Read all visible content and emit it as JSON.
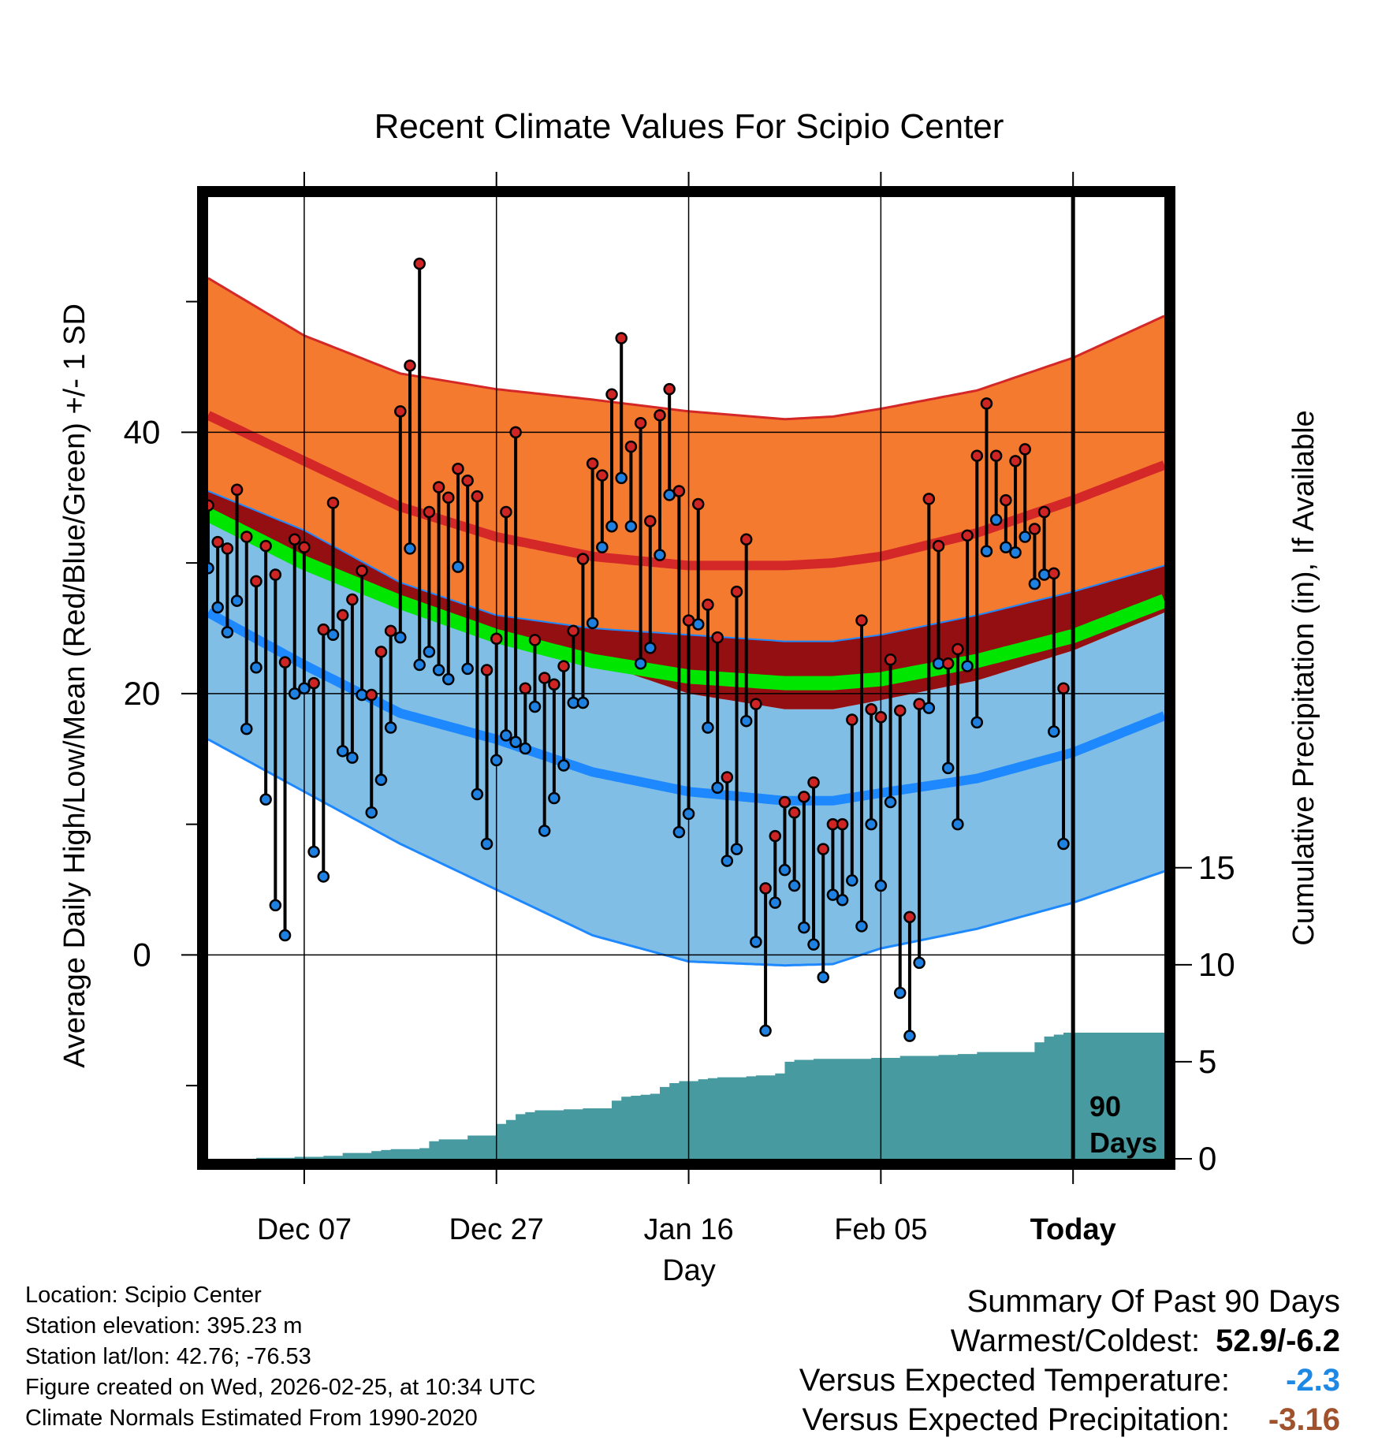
{
  "chart_data": {
    "type": "line",
    "title": "Recent Climate Values For Scipio Center",
    "xlabel": "Day",
    "ylabel_left": "Average Daily High/Low/Mean (Red/Blue/Green) +/- 1 SD",
    "ylabel_right": "Cumulative Precipitation (in), If Available",
    "x_tick_labels": [
      "Dec 07",
      "Dec 27",
      "Jan 16",
      "Feb 05",
      "Today"
    ],
    "x_tick_days": [
      10,
      30,
      50,
      70,
      90
    ],
    "xlim": [
      0,
      99.5
    ],
    "ylim_temp": [
      -15.6,
      58
    ],
    "y_ticks_temp": [
      "40",
      "20",
      "0"
    ],
    "y_tick_values_temp": [
      40,
      20,
      0
    ],
    "y_ticks_precip": [
      "15",
      "10",
      "5",
      "0"
    ],
    "y_tick_values_precip": [
      15,
      10,
      5,
      0
    ],
    "precip_scale": {
      "zero_at_temp": -15.6,
      "temp_per_inch": 1.485
    },
    "window_label": "90",
    "window_label2": "Days",
    "normal_high": {
      "x": [
        0,
        10,
        20,
        30,
        40,
        50,
        60,
        65,
        70,
        80,
        90,
        99.5
      ],
      "mean": [
        41.3,
        37.8,
        34.3,
        32.0,
        30.5,
        29.8,
        29.8,
        30.0,
        30.5,
        32.3,
        34.8,
        37.5
      ],
      "upper": [
        51.8,
        47.4,
        44.5,
        43.3,
        42.5,
        41.6,
        41.0,
        41.2,
        41.8,
        43.2,
        45.7,
        48.9
      ],
      "lower": [
        35.5,
        32.5,
        28.5,
        26.0,
        25.0,
        24.5,
        24.0,
        24.0,
        24.5,
        26.0,
        27.8,
        29.8
      ]
    },
    "normal_mean": {
      "x": [
        0,
        10,
        20,
        30,
        40,
        50,
        60,
        65,
        70,
        80,
        90,
        99.5
      ],
      "values": [
        33.7,
        30.0,
        27.0,
        24.4,
        22.5,
        21.3,
        20.8,
        20.8,
        21.1,
        22.5,
        24.4,
        27.1
      ]
    },
    "normal_low": {
      "x": [
        0,
        10,
        20,
        30,
        40,
        50,
        60,
        65,
        70,
        80,
        90,
        99.5
      ],
      "mean": [
        26.2,
        22.2,
        18.5,
        16.5,
        14.0,
        12.5,
        11.8,
        11.8,
        12.4,
        13.5,
        15.5,
        18.3
      ],
      "upper": [
        33.5,
        30.0,
        26.5,
        24.0,
        22.5,
        20.0,
        18.8,
        18.8,
        19.5,
        21.0,
        23.3,
        26.2
      ],
      "lower": [
        16.5,
        12.5,
        8.5,
        5.0,
        1.5,
        -0.5,
        -0.8,
        -0.7,
        0.5,
        2.0,
        4.0,
        6.4
      ]
    },
    "daily_high": [
      34.4,
      31.6,
      31.1,
      35.6,
      32.0,
      28.6,
      31.3,
      29.1,
      22.4,
      31.8,
      31.2,
      20.8,
      24.9,
      34.6,
      26.0,
      27.2,
      29.4,
      19.9,
      23.2,
      24.8,
      41.6,
      45.1,
      52.9,
      33.9,
      35.8,
      35.0,
      37.2,
      36.3,
      35.1,
      21.8,
      24.2,
      33.9,
      40.0,
      20.4,
      24.1,
      21.2,
      20.7,
      22.1,
      24.8,
      30.3,
      37.6,
      36.7,
      42.9,
      47.2,
      38.9,
      40.7,
      33.2,
      41.3,
      43.3,
      35.5,
      25.6,
      34.5,
      26.8,
      24.3,
      13.6,
      27.8,
      31.8,
      19.2,
      5.1,
      9.1,
      11.7,
      10.9,
      12.1,
      13.2,
      8.1,
      10.0,
      10.0,
      18.0,
      25.6,
      18.8,
      18.2,
      22.6,
      18.7,
      2.9,
      19.2,
      34.9,
      31.3,
      22.3,
      23.4,
      32.1,
      38.2,
      42.2,
      38.2,
      34.8,
      37.8,
      38.7,
      32.6,
      33.9,
      29.2,
      20.4
    ],
    "daily_low": [
      29.6,
      26.6,
      24.7,
      27.1,
      17.3,
      22.0,
      11.9,
      3.8,
      1.5,
      20.0,
      20.4,
      7.9,
      6.0,
      24.5,
      15.6,
      15.1,
      19.9,
      10.9,
      13.4,
      17.4,
      24.3,
      31.1,
      22.2,
      23.2,
      21.8,
      21.1,
      29.7,
      21.9,
      12.3,
      8.5,
      14.9,
      16.8,
      16.3,
      15.8,
      19.0,
      9.5,
      12.0,
      14.5,
      19.3,
      19.3,
      25.4,
      31.2,
      32.8,
      36.5,
      32.8,
      22.3,
      23.5,
      30.6,
      35.2,
      9.4,
      10.8,
      25.3,
      17.4,
      12.8,
      7.2,
      8.1,
      17.9,
      1.0,
      -5.8,
      4.0,
      6.5,
      5.3,
      2.1,
      0.8,
      -1.7,
      4.6,
      4.2,
      5.7,
      2.2,
      10.0,
      5.3,
      11.7,
      -2.9,
      -6.2,
      -0.6,
      18.9,
      22.3,
      14.3,
      10.0,
      22.1,
      17.8,
      30.9,
      33.3,
      31.2,
      30.8,
      32.0,
      28.4,
      29.1,
      17.1,
      8.5
    ],
    "cumulative_precip": [
      0.0,
      0.0,
      0.0,
      0.0,
      0.0,
      0.05,
      0.05,
      0.05,
      0.05,
      0.1,
      0.1,
      0.1,
      0.15,
      0.15,
      0.3,
      0.3,
      0.3,
      0.4,
      0.45,
      0.5,
      0.5,
      0.5,
      0.55,
      0.9,
      1.0,
      1.0,
      1.0,
      1.2,
      1.2,
      1.2,
      1.8,
      2.0,
      2.3,
      2.4,
      2.5,
      2.5,
      2.5,
      2.55,
      2.55,
      2.6,
      2.6,
      2.6,
      3.0,
      3.2,
      3.25,
      3.3,
      3.35,
      3.7,
      3.9,
      4.0,
      4.0,
      4.1,
      4.15,
      4.2,
      4.2,
      4.2,
      4.25,
      4.3,
      4.3,
      4.4,
      5.0,
      5.1,
      5.1,
      5.15,
      5.15,
      5.15,
      5.15,
      5.15,
      5.15,
      5.2,
      5.2,
      5.2,
      5.3,
      5.3,
      5.3,
      5.3,
      5.35,
      5.35,
      5.4,
      5.4,
      5.5,
      5.5,
      5.5,
      5.5,
      5.5,
      5.5,
      6.0,
      6.3,
      6.4,
      6.5
    ],
    "colors": {
      "high_band": "#f47a30",
      "high_line": "#d42828",
      "mean_band": "#940f12",
      "mean_line": "#00e600",
      "low_band": "#80bee6",
      "low_line": "#1e88ff",
      "precip": "#469aa0",
      "high_dot": "#cf2424",
      "low_dot": "#1e80e0"
    }
  },
  "info": {
    "location": "Location: Scipio Center",
    "elevation": "Station elevation: 395.23 m",
    "latlon": "Station lat/lon: 42.76; -76.53",
    "created": "Figure created on Wed, 2026-02-25, at 10:34 UTC",
    "normals": "Climate Normals Estimated From 1990-2020"
  },
  "summary": {
    "heading": "Summary Of Past 90 Days",
    "warmest_label": "Warmest/Coldest:",
    "warmest_value": "52.9/-6.2",
    "temp_label": "Versus Expected Temperature:",
    "temp_value": "-2.3",
    "temp_color": "#1e88e5",
    "precip_label": "Versus Expected Precipitation:",
    "precip_value": "-3.16",
    "precip_color": "#a0522d"
  }
}
